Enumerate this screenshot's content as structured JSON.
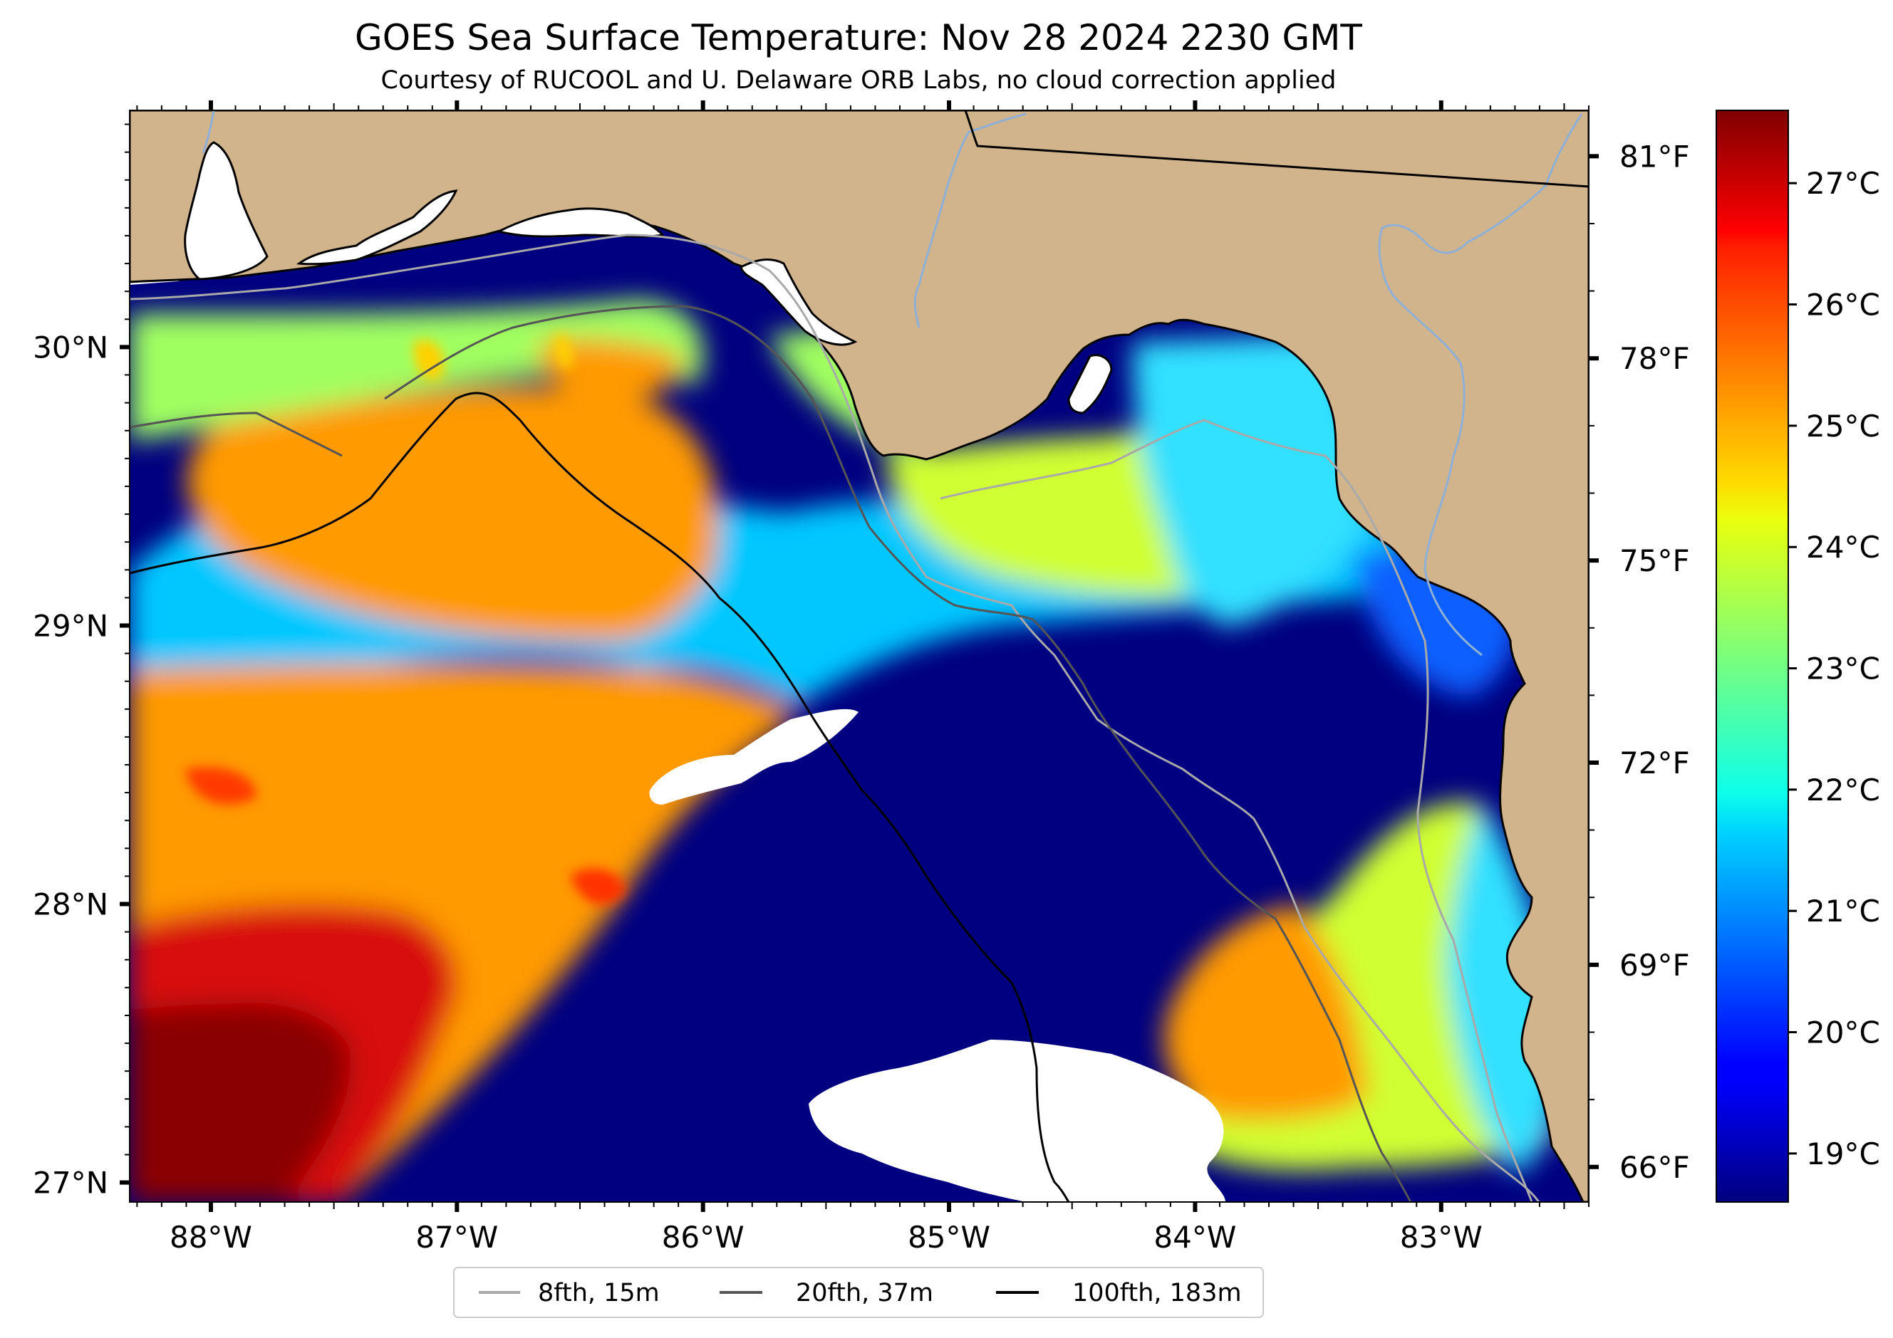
{
  "header": {
    "title": "GOES Sea Surface Temperature: Nov 28 2024 2230 GMT",
    "subtitle": "Courtesy of RUCOOL and U. Delaware ORB Labs, no cloud correction applied"
  },
  "colors": {
    "land": "#d2b48c",
    "cold_water": "#000080",
    "no_data": "#ffffff",
    "isobath_8fth": "#a9a9a9",
    "isobath_20fth": "#555555",
    "isobath_100fth": "#000000",
    "rivers": "#8fb0d6"
  },
  "chart_data": {
    "type": "heatmap",
    "map_extent": {
      "lon": [
        -88.33,
        -82.4
      ],
      "lat": [
        26.93,
        30.85
      ]
    },
    "x_ticks": [
      {
        "value": -88,
        "label": "88°W"
      },
      {
        "value": -87,
        "label": "87°W"
      },
      {
        "value": -86,
        "label": "86°W"
      },
      {
        "value": -85,
        "label": "85°W"
      },
      {
        "value": -84,
        "label": "84°W"
      },
      {
        "value": -83,
        "label": "83°W"
      }
    ],
    "y_ticks": [
      {
        "value": 30,
        "label": "30°N"
      },
      {
        "value": 29,
        "label": "29°N"
      },
      {
        "value": 28,
        "label": "28°N"
      },
      {
        "value": 27,
        "label": "27°N"
      }
    ],
    "colorbar": {
      "colormap": "jet",
      "range_c": [
        18.6,
        27.6
      ],
      "ticks_c": [
        {
          "value": 27,
          "label": "27°C"
        },
        {
          "value": 26,
          "label": "26°C"
        },
        {
          "value": 25,
          "label": "25°C"
        },
        {
          "value": 24,
          "label": "24°C"
        },
        {
          "value": 23,
          "label": "23°C"
        },
        {
          "value": 22,
          "label": "22°C"
        },
        {
          "value": 21,
          "label": "21°C"
        },
        {
          "value": 20,
          "label": "20°C"
        },
        {
          "value": 19,
          "label": "19°C"
        }
      ],
      "ticks_f": [
        {
          "value": 81,
          "label": "81°F"
        },
        {
          "value": 78,
          "label": "78°F"
        },
        {
          "value": 75,
          "label": "75°F"
        },
        {
          "value": 72,
          "label": "72°F"
        },
        {
          "value": 69,
          "label": "69°F"
        },
        {
          "value": 66,
          "label": "66°F"
        }
      ]
    },
    "legend": {
      "placement": "bottom-center",
      "entries": [
        {
          "label": "8fth, 15m",
          "color": "#a9a9a9"
        },
        {
          "label": "20fth, 37m",
          "color": "#555555"
        },
        {
          "label": "100fth, 183m",
          "color": "#000000"
        }
      ]
    }
  }
}
